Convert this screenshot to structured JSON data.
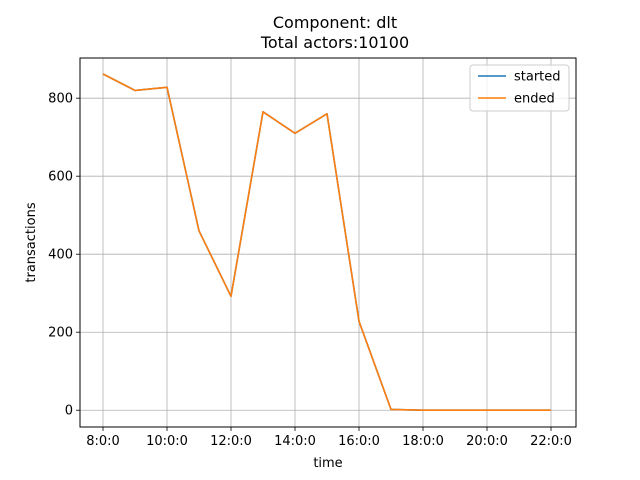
{
  "chart_data": {
    "type": "line",
    "title": "Component: dlt",
    "subtitle": "Total actors:10100",
    "xlabel": "time",
    "ylabel": "transactions",
    "x": [
      "8:0:0",
      "9:0:0",
      "10:0:0",
      "11:0:0",
      "12:0:0",
      "13:0:0",
      "14:0:0",
      "15:0:0",
      "16:0:0",
      "17:0:0",
      "18:0:0",
      "19:0:0",
      "20:0:0",
      "21:0:0",
      "22:0:0"
    ],
    "xticks": [
      "8:0:0",
      "10:0:0",
      "12:0:0",
      "14:0:0",
      "16:0:0",
      "18:0:0",
      "20:0:0",
      "22:0:0"
    ],
    "yticks": [
      0,
      200,
      400,
      600,
      800
    ],
    "ylim": [
      -43,
      903
    ],
    "grid": true,
    "legend_position": "top-right",
    "series": [
      {
        "name": "started",
        "color": "#1f77b4",
        "values": [
          862,
          820,
          828,
          460,
          292,
          765,
          710,
          760,
          228,
          2,
          0,
          0,
          0,
          0,
          0
        ]
      },
      {
        "name": "ended",
        "color": "#ff7f0e",
        "values": [
          862,
          820,
          828,
          460,
          292,
          765,
          710,
          760,
          228,
          2,
          0,
          0,
          0,
          0,
          0
        ]
      }
    ]
  }
}
